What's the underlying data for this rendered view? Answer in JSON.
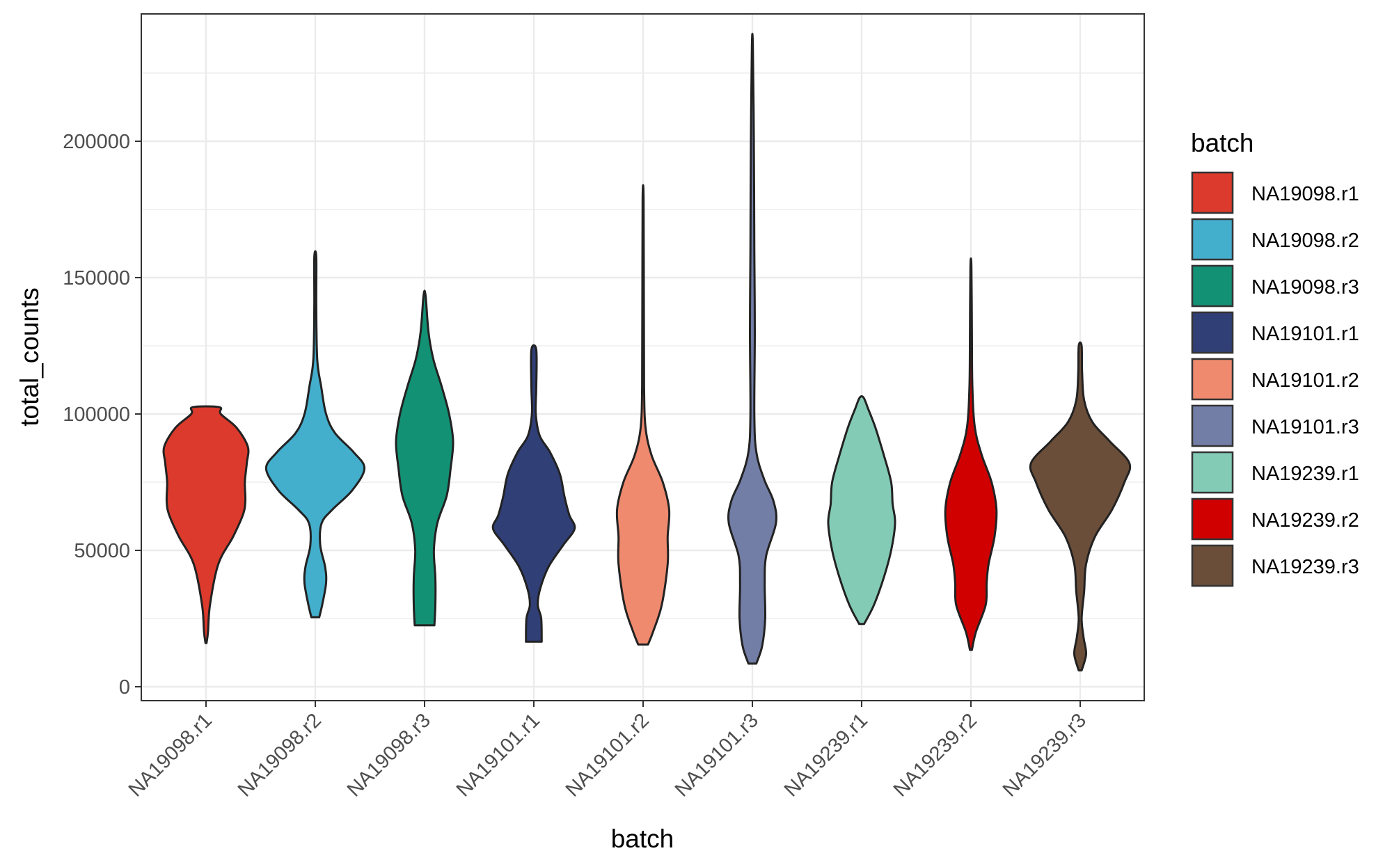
{
  "chart_data": {
    "type": "violin",
    "title": "",
    "xlabel": "batch",
    "ylabel": "total_counts",
    "ylim": [
      -4500,
      245000
    ],
    "y_ticks": [
      0,
      50000,
      100000,
      150000,
      200000
    ],
    "y_tick_labels": [
      "0",
      "50000",
      "100000",
      "150000",
      "200000"
    ],
    "grid": true,
    "legend": {
      "title": "batch",
      "placement": "right"
    },
    "categories": [
      "NA19098.r1",
      "NA19098.r2",
      "NA19098.r3",
      "NA19101.r1",
      "NA19101.r2",
      "NA19101.r3",
      "NA19239.r1",
      "NA19239.r2",
      "NA19239.r3"
    ],
    "series": [
      {
        "name": "NA19098.r1",
        "color": "#DC3A2C",
        "min": 16000,
        "max": 102500,
        "profile": [
          [
            16000,
            0.01
          ],
          [
            20000,
            0.04
          ],
          [
            30000,
            0.08
          ],
          [
            45000,
            0.25
          ],
          [
            55000,
            0.55
          ],
          [
            63000,
            0.75
          ],
          [
            68000,
            0.8
          ],
          [
            75000,
            0.79
          ],
          [
            82000,
            0.83
          ],
          [
            88000,
            0.85
          ],
          [
            95000,
            0.62
          ],
          [
            100000,
            0.3
          ],
          [
            102500,
            0.27
          ]
        ]
      },
      {
        "name": "NA19098.r2",
        "color": "#44AECD",
        "min": 25500,
        "max": 157500,
        "profile": [
          [
            25500,
            0.08
          ],
          [
            30000,
            0.14
          ],
          [
            38000,
            0.22
          ],
          [
            44000,
            0.2
          ],
          [
            52000,
            0.1
          ],
          [
            60000,
            0.13
          ],
          [
            65000,
            0.35
          ],
          [
            72000,
            0.75
          ],
          [
            80000,
            1.0
          ],
          [
            86000,
            0.78
          ],
          [
            93000,
            0.4
          ],
          [
            100000,
            0.22
          ],
          [
            110000,
            0.12
          ],
          [
            120000,
            0.04
          ],
          [
            140000,
            0.02
          ],
          [
            157500,
            0.02
          ]
        ]
      },
      {
        "name": "NA19098.r3",
        "color": "#139175",
        "min": 22500,
        "max": 143500,
        "profile": [
          [
            22500,
            0.2
          ],
          [
            30000,
            0.22
          ],
          [
            40000,
            0.22
          ],
          [
            50000,
            0.19
          ],
          [
            60000,
            0.26
          ],
          [
            70000,
            0.45
          ],
          [
            80000,
            0.53
          ],
          [
            90000,
            0.58
          ],
          [
            100000,
            0.5
          ],
          [
            110000,
            0.35
          ],
          [
            120000,
            0.18
          ],
          [
            130000,
            0.08
          ],
          [
            143500,
            0.02
          ]
        ]
      },
      {
        "name": "NA19101.r1",
        "color": "#313F77",
        "min": 16500,
        "max": 123500,
        "profile": [
          [
            16500,
            0.16
          ],
          [
            25000,
            0.15
          ],
          [
            30000,
            0.08
          ],
          [
            36000,
            0.13
          ],
          [
            44000,
            0.3
          ],
          [
            52000,
            0.6
          ],
          [
            58000,
            0.83
          ],
          [
            63000,
            0.72
          ],
          [
            70000,
            0.62
          ],
          [
            78000,
            0.53
          ],
          [
            86000,
            0.33
          ],
          [
            92000,
            0.12
          ],
          [
            100000,
            0.04
          ],
          [
            110000,
            0.05
          ],
          [
            123500,
            0.05
          ]
        ]
      },
      {
        "name": "NA19101.r2",
        "color": "#EF8A6F",
        "min": 15500,
        "max": 179000,
        "profile": [
          [
            15500,
            0.1
          ],
          [
            20000,
            0.2
          ],
          [
            30000,
            0.38
          ],
          [
            45000,
            0.5
          ],
          [
            55000,
            0.5
          ],
          [
            65000,
            0.53
          ],
          [
            75000,
            0.4
          ],
          [
            85000,
            0.17
          ],
          [
            95000,
            0.05
          ],
          [
            110000,
            0.02
          ],
          [
            140000,
            0.015
          ],
          [
            179000,
            0.01
          ]
        ]
      },
      {
        "name": "NA19101.r3",
        "color": "#737EA7",
        "min": 8500,
        "max": 235000,
        "profile": [
          [
            8500,
            0.08
          ],
          [
            15000,
            0.2
          ],
          [
            25000,
            0.26
          ],
          [
            38000,
            0.25
          ],
          [
            48000,
            0.28
          ],
          [
            60000,
            0.48
          ],
          [
            68000,
            0.43
          ],
          [
            76000,
            0.24
          ],
          [
            86000,
            0.08
          ],
          [
            100000,
            0.04
          ],
          [
            130000,
            0.05
          ],
          [
            160000,
            0.04
          ],
          [
            200000,
            0.03
          ],
          [
            235000,
            0.01
          ]
        ]
      },
      {
        "name": "NA19239.r1",
        "color": "#83CBB5",
        "min": 23000,
        "max": 106000,
        "profile": [
          [
            23000,
            0.05
          ],
          [
            30000,
            0.25
          ],
          [
            40000,
            0.45
          ],
          [
            50000,
            0.6
          ],
          [
            60000,
            0.68
          ],
          [
            67000,
            0.63
          ],
          [
            75000,
            0.6
          ],
          [
            85000,
            0.45
          ],
          [
            95000,
            0.28
          ],
          [
            102000,
            0.13
          ],
          [
            106000,
            0.04
          ]
        ]
      },
      {
        "name": "NA19239.r2",
        "color": "#D10000",
        "min": 13500,
        "max": 154000,
        "profile": [
          [
            13500,
            0.02
          ],
          [
            20000,
            0.1
          ],
          [
            30000,
            0.3
          ],
          [
            38000,
            0.32
          ],
          [
            45000,
            0.36
          ],
          [
            55000,
            0.48
          ],
          [
            65000,
            0.52
          ],
          [
            75000,
            0.42
          ],
          [
            85000,
            0.22
          ],
          [
            95000,
            0.08
          ],
          [
            110000,
            0.03
          ],
          [
            130000,
            0.02
          ],
          [
            154000,
            0.01
          ]
        ]
      },
      {
        "name": "NA19239.r3",
        "color": "#6B4E39",
        "min": 6000,
        "max": 125000,
        "profile": [
          [
            6000,
            0.03
          ],
          [
            12000,
            0.12
          ],
          [
            18000,
            0.07
          ],
          [
            25000,
            0.03
          ],
          [
            35000,
            0.08
          ],
          [
            45000,
            0.12
          ],
          [
            55000,
            0.3
          ],
          [
            65000,
            0.65
          ],
          [
            75000,
            0.9
          ],
          [
            82000,
            1.0
          ],
          [
            90000,
            0.6
          ],
          [
            97000,
            0.25
          ],
          [
            105000,
            0.08
          ],
          [
            115000,
            0.04
          ],
          [
            125000,
            0.03
          ]
        ]
      }
    ]
  }
}
